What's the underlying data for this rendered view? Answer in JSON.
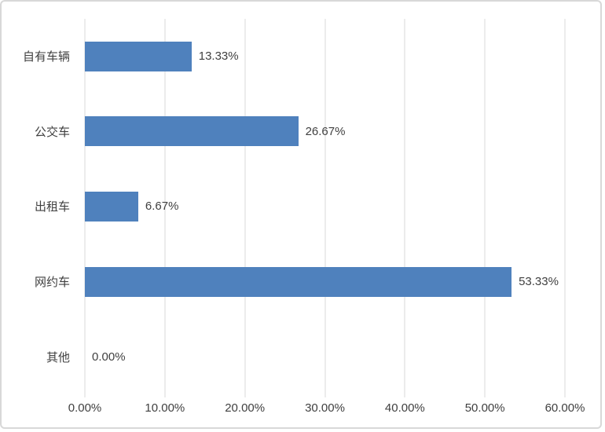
{
  "chart_data": {
    "type": "bar",
    "orientation": "horizontal",
    "title": "",
    "xlabel": "",
    "ylabel": "",
    "categories": [
      "自有车辆",
      "公交车",
      "出租车",
      "网约车",
      "其他"
    ],
    "values": [
      13.33,
      26.67,
      6.67,
      53.33,
      0.0
    ],
    "value_labels": [
      "13.33%",
      "26.67%",
      "6.67%",
      "53.33%",
      "0.00%"
    ],
    "x_ticks": [
      "0.00%",
      "10.00%",
      "20.00%",
      "30.00%",
      "40.00%",
      "50.00%",
      "60.00%"
    ],
    "xlim": [
      0,
      60
    ],
    "grid": "vertical-gridlines-on",
    "legend": "none",
    "bar_color": "#4f81bd",
    "gridline_color": "#d9d9d9",
    "text_color": "#404040",
    "frame_border_color": "#d8d8d8"
  }
}
